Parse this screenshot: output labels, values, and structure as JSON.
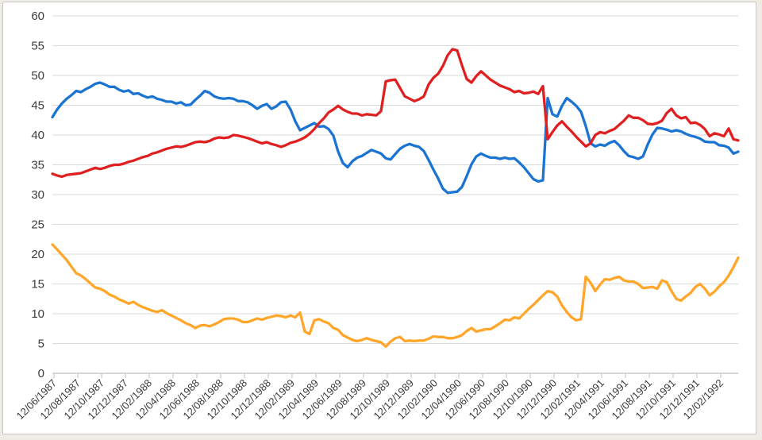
{
  "chart_data": {
    "type": "line",
    "title": "",
    "xlabel": "",
    "ylabel": "",
    "legend": "none",
    "grid": true,
    "x_label_rotation": -45,
    "y_ticks": [
      0,
      5,
      10,
      15,
      20,
      25,
      30,
      35,
      40,
      45,
      50,
      55,
      60
    ],
    "ylim": [
      0,
      60
    ],
    "x_tick_labels": [
      "12/06/1987",
      "12/08/1987",
      "12/10/1987",
      "12/12/1987",
      "12/02/1988",
      "12/04/1988",
      "12/06/1988",
      "12/08/1988",
      "12/10/1988",
      "12/12/1988",
      "12/02/1989",
      "12/04/1989",
      "12/06/1989",
      "12/08/1989",
      "12/10/1989",
      "12/12/1989",
      "12/02/1990",
      "12/04/1990",
      "12/06/1990",
      "12/08/1990",
      "12/10/1990",
      "12/12/1990",
      "12/02/1991",
      "12/04/1991",
      "12/06/1991",
      "12/08/1991",
      "12/10/1991",
      "12/12/1991",
      "12/02/1992"
    ],
    "points_per_tick_interval": 5,
    "series": [
      {
        "name": "blue",
        "color": "#1b74d2",
        "values": [
          43.0,
          44.3,
          45.3,
          46.1,
          46.7,
          47.4,
          47.2,
          47.7,
          48.1,
          48.6,
          48.8,
          48.5,
          48.1,
          48.1,
          47.6,
          47.3,
          47.5,
          46.9,
          47.0,
          46.6,
          46.3,
          46.5,
          46.1,
          45.9,
          45.6,
          45.6,
          45.3,
          45.5,
          45.0,
          45.1,
          45.9,
          46.6,
          47.4,
          47.1,
          46.5,
          46.2,
          46.1,
          46.2,
          46.1,
          45.7,
          45.7,
          45.5,
          45.0,
          44.4,
          44.9,
          45.2,
          44.4,
          44.8,
          45.5,
          45.6,
          44.3,
          42.3,
          40.8,
          41.2,
          41.6,
          42.0,
          41.4,
          41.5,
          41.0,
          39.9,
          37.2,
          35.3,
          34.6,
          35.6,
          36.2,
          36.5,
          37.0,
          37.5,
          37.2,
          36.9,
          36.1,
          35.9,
          36.8,
          37.7,
          38.2,
          38.5,
          38.2,
          38.0,
          37.3,
          35.8,
          34.2,
          32.7,
          31.0,
          30.3,
          30.4,
          30.5,
          31.3,
          33.1,
          35.1,
          36.4,
          36.9,
          36.5,
          36.2,
          36.2,
          36.0,
          36.2,
          36.0,
          36.1,
          35.4,
          34.6,
          33.6,
          32.6,
          32.2,
          32.4,
          46.2,
          43.5,
          43.1,
          44.9,
          46.2,
          45.6,
          44.9,
          43.9,
          41.5,
          38.6,
          38.1,
          38.4,
          38.2,
          38.7,
          39.0,
          38.3,
          37.3,
          36.5,
          36.3,
          36.0,
          36.4,
          38.4,
          40.1,
          41.2,
          41.1,
          40.9,
          40.6,
          40.8,
          40.6,
          40.2,
          39.9,
          39.7,
          39.4,
          38.9,
          38.8,
          38.8,
          38.3,
          38.2,
          37.9,
          36.9,
          37.2
        ]
      },
      {
        "name": "red",
        "color": "#e02020",
        "values": [
          33.5,
          33.2,
          33.0,
          33.3,
          33.4,
          33.5,
          33.6,
          33.9,
          34.2,
          34.5,
          34.3,
          34.5,
          34.8,
          35.0,
          35.0,
          35.2,
          35.5,
          35.7,
          36.0,
          36.3,
          36.5,
          36.9,
          37.1,
          37.4,
          37.7,
          37.9,
          38.1,
          38.0,
          38.2,
          38.5,
          38.8,
          38.9,
          38.8,
          39.0,
          39.4,
          39.6,
          39.5,
          39.6,
          40.0,
          39.9,
          39.7,
          39.5,
          39.2,
          38.9,
          38.6,
          38.8,
          38.5,
          38.3,
          38.0,
          38.3,
          38.7,
          38.9,
          39.2,
          39.6,
          40.2,
          41.0,
          42.0,
          42.8,
          43.8,
          44.3,
          44.9,
          44.3,
          43.9,
          43.6,
          43.6,
          43.3,
          43.5,
          43.4,
          43.3,
          44.0,
          49.0,
          49.2,
          49.3,
          47.9,
          46.5,
          46.1,
          45.7,
          46.0,
          46.5,
          48.5,
          49.6,
          50.3,
          51.6,
          53.4,
          54.4,
          54.2,
          51.7,
          49.4,
          48.8,
          49.9,
          50.7,
          50.0,
          49.3,
          48.8,
          48.3,
          48.0,
          47.7,
          47.2,
          47.4,
          47.0,
          47.1,
          47.3,
          46.9,
          48.2,
          39.3,
          40.5,
          41.6,
          42.3,
          41.4,
          40.6,
          39.7,
          38.9,
          38.1,
          38.6,
          40.0,
          40.5,
          40.3,
          40.7,
          41.0,
          41.7,
          42.4,
          43.3,
          42.9,
          42.9,
          42.5,
          41.9,
          41.8,
          42.0,
          42.4,
          43.7,
          44.4,
          43.3,
          42.8,
          43.0,
          42.0,
          42.1,
          41.7,
          41.0,
          39.8,
          40.3,
          40.1,
          39.8,
          41.1,
          39.3,
          39.1
        ]
      },
      {
        "name": "orange",
        "color": "#ffa62b",
        "values": [
          21.6,
          20.8,
          19.9,
          19.0,
          17.9,
          16.8,
          16.4,
          15.8,
          15.1,
          14.4,
          14.2,
          13.8,
          13.2,
          12.9,
          12.4,
          12.1,
          11.7,
          12.0,
          11.5,
          11.1,
          10.8,
          10.5,
          10.3,
          10.6,
          10.1,
          9.7,
          9.3,
          8.9,
          8.4,
          8.1,
          7.6,
          8.0,
          8.1,
          7.9,
          8.2,
          8.6,
          9.1,
          9.2,
          9.2,
          9.0,
          8.6,
          8.6,
          8.9,
          9.2,
          9.0,
          9.3,
          9.5,
          9.7,
          9.6,
          9.4,
          9.7,
          9.4,
          10.2,
          7.0,
          6.6,
          8.9,
          9.1,
          8.7,
          8.4,
          7.6,
          7.3,
          6.4,
          6.0,
          5.6,
          5.4,
          5.6,
          5.9,
          5.6,
          5.4,
          5.2,
          4.5,
          5.3,
          5.9,
          6.1,
          5.4,
          5.5,
          5.4,
          5.5,
          5.5,
          5.8,
          6.2,
          6.1,
          6.1,
          5.9,
          5.9,
          6.1,
          6.4,
          7.1,
          7.6,
          7.0,
          7.2,
          7.4,
          7.4,
          7.9,
          8.4,
          9.0,
          8.9,
          9.4,
          9.2,
          10.0,
          10.8,
          11.5,
          12.3,
          13.1,
          13.8,
          13.6,
          12.9,
          11.4,
          10.3,
          9.4,
          8.9,
          9.1,
          16.2,
          15.2,
          13.8,
          14.9,
          15.8,
          15.7,
          16.0,
          16.2,
          15.6,
          15.4,
          15.4,
          15.0,
          14.3,
          14.4,
          14.5,
          14.2,
          15.6,
          15.3,
          13.8,
          12.5,
          12.2,
          12.9,
          13.5,
          14.5,
          15.0,
          14.2,
          13.1,
          13.7,
          14.6,
          15.3,
          16.4,
          17.8,
          19.4
        ]
      }
    ]
  },
  "colors": {
    "background": "#ffffff",
    "page_margin": "#efece6",
    "frame_border": "#c9c7c3",
    "gridline": "#dadada",
    "axis_line": "#bfbfbf",
    "tick_mark": "#bfbfbf",
    "label_text": "#3b3b3b"
  }
}
